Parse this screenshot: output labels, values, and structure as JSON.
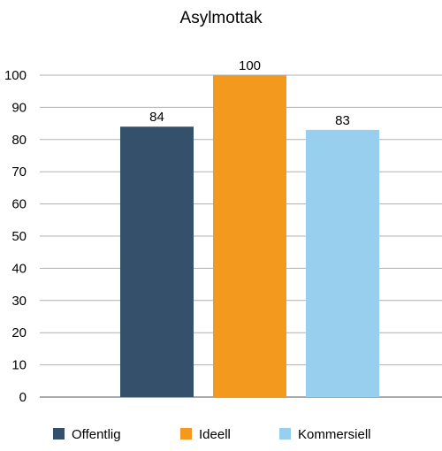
{
  "chart_data": {
    "type": "bar",
    "title": "Asylmottak",
    "categories": [
      "Offentlig",
      "Ideell",
      "Kommersiell"
    ],
    "values": [
      84,
      100,
      83
    ],
    "data_labels": [
      "84",
      "100",
      "83"
    ],
    "colors": [
      "#34506a",
      "#f39a1e",
      "#99cfee"
    ],
    "ylim": [
      0,
      100
    ],
    "yticks": [
      "0",
      "10",
      "20",
      "30",
      "40",
      "50",
      "60",
      "70",
      "80",
      "90",
      "100"
    ],
    "xlabel": "",
    "ylabel": "",
    "grid": true,
    "legend": "bottom"
  }
}
